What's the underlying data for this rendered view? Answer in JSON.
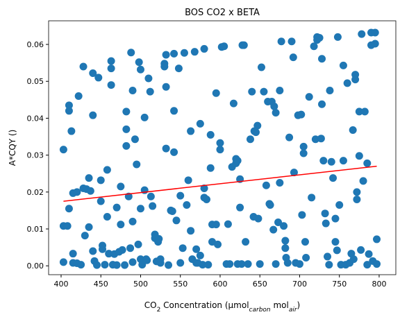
{
  "chart_data": {
    "type": "scatter",
    "title": "BOS CO2 x BETA",
    "xlabel_parts": [
      "CO",
      "2",
      " Concentration (μmol",
      "carbon",
      " mol",
      "air",
      ")"
    ],
    "ylabel": "A*CQY ()",
    "color": "#1f77b4",
    "xlim": [
      384.3,
      821
    ],
    "ylim": [
      -0.0024,
      0.0664
    ],
    "xticks": [
      400,
      450,
      500,
      550,
      600,
      650,
      700,
      750,
      800
    ],
    "yticks": [
      {
        "value": 0,
        "label": "0.00"
      },
      0.01,
      0.02,
      0.03,
      0.04,
      0.05,
      0.06
    ],
    "x": [
      403,
      403,
      403,
      408,
      410,
      410,
      410,
      413,
      415,
      415,
      415,
      420,
      420,
      422,
      425,
      428,
      428,
      430,
      432,
      435,
      435,
      437,
      440,
      440,
      440,
      442,
      445,
      447,
      450,
      450,
      452,
      452,
      455,
      458,
      458,
      460,
      463,
      463,
      463,
      465,
      467,
      470,
      470,
      473,
      475,
      475,
      477,
      480,
      482,
      482,
      482,
      485,
      487,
      488,
      490,
      490,
      490,
      493,
      495,
      497,
      498,
      500,
      500,
      500,
      502,
      505,
      505,
      507,
      508,
      510,
      512,
      513,
      515,
      518,
      518,
      520,
      522,
      523,
      525,
      525,
      530,
      530,
      532,
      532,
      532,
      535,
      538,
      540,
      542,
      542,
      542,
      545,
      548,
      550,
      550,
      553,
      555,
      558,
      560,
      563,
      563,
      565,
      568,
      570,
      570,
      572,
      575,
      575,
      578,
      580,
      580,
      580,
      583,
      585,
      588,
      588,
      590,
      590,
      595,
      595,
      597,
      600,
      600,
      602,
      605,
      608,
      610,
      612,
      615,
      617,
      620,
      620,
      622,
      622,
      625,
      625,
      627,
      628,
      630,
      632,
      635,
      638,
      640,
      642,
      643,
      645,
      647,
      648,
      650,
      652,
      655,
      658,
      660,
      662,
      663,
      665,
      667,
      668,
      670,
      670,
      673,
      675,
      675,
      677,
      680,
      682,
      682,
      683,
      685,
      687,
      690,
      692,
      693,
      695,
      698,
      700,
      702,
      703,
      705,
      705,
      707,
      708,
      712,
      715,
      718,
      720,
      722,
      722,
      725,
      727,
      728,
      728,
      730,
      732,
      733,
      735,
      737,
      738,
      740,
      742,
      745,
      745,
      747,
      748,
      750,
      752,
      755,
      755,
      758,
      760,
      763,
      765,
      767,
      768,
      770,
      770,
      772,
      772,
      775,
      775,
      777,
      778,
      780,
      782,
      785,
      785,
      787,
      790,
      790,
      792,
      795,
      795,
      797,
      797
    ],
    "values": [
      0.0315,
      0.0108,
      0.001,
      0.0108,
      0.0435,
      0.042,
      0.0155,
      0.0365,
      0.0197,
      0.0033,
      0.0008,
      0.02,
      0.0007,
      0.046,
      0.0003,
      0.054,
      0.021,
      0.0082,
      0.0208,
      0.0105,
      0.0238,
      0.0203,
      0.0522,
      0.0408,
      0.004,
      0.0013,
      0.0002,
      0.051,
      0.0232,
      0.0175,
      0.0055,
      0.0045,
      0.0003,
      0.026,
      0.0133,
      0.0033,
      0.0555,
      0.0535,
      0.049,
      0.0003,
      0.0032,
      0.0158,
      0.0002,
      0.0038,
      0.0215,
      0.0112,
      0.0043,
      0.0002,
      0.0418,
      0.037,
      0.0325,
      0.0188,
      0.0048,
      0.0578,
      0.0475,
      0.012,
      0.001,
      0.0343,
      0.0275,
      0.0058,
      0.0552,
      0.0532,
      0.0155,
      0.0018,
      0.0003,
      0.0402,
      0.0205,
      0.0018,
      0.0015,
      0.0508,
      0.0472,
      0.0188,
      0.0162,
      0.0085,
      0.0075,
      0.0012,
      0.0065,
      0.0073,
      0.0008,
      0.0018,
      0.0548,
      0.054,
      0.0572,
      0.0485,
      0.0318,
      0.0002,
      0.015,
      0.0148,
      0.0575,
      0.042,
      0.0308,
      0.0123,
      0.0535,
      0.019,
      0.0008,
      0.0048,
      0.0577,
      0.0165,
      0.0232,
      0.0365,
      0.0095,
      0.0018,
      0.058,
      0.0045,
      0.0008,
      0.0008,
      0.0385,
      0.0028,
      0.0003,
      0.0588,
      0.021,
      0.0185,
      0.018,
      0.0003,
      0.0355,
      0.0265,
      0.0112,
      0.0065,
      0.0468,
      0.0112,
      0.0058,
      0.0333,
      0.0315,
      0.0593,
      0.0595,
      0.0005,
      0.0113,
      0.0005,
      0.0268,
      0.044,
      0.029,
      0.0278,
      0.0285,
      0.0005,
      0.0235,
      0.0158,
      0.0005,
      0.0598,
      0.0598,
      0.0065,
      0.0005,
      0.0343,
      0.0472,
      0.0133,
      0.0365,
      0.0362,
      0.038,
      0.0128,
      0.0005,
      0.0538,
      0.0472,
      0.0218,
      0.0445,
      0.0168,
      0.0165,
      0.0445,
      0.0098,
      0.0432,
      0.0415,
      0.0005,
      0.0118,
      0.0475,
      0.0225,
      0.0608,
      0.0108,
      0.0068,
      0.0048,
      0.0022,
      0.0008,
      0.0348,
      0.0608,
      0.0565,
      0.0253,
      0.0008,
      0.0408,
      0.0005,
      0.041,
      0.0138,
      0.0323,
      0.0305,
      0.0065,
      0.0022,
      0.0458,
      0.0185,
      0.0595,
      0.0343,
      0.0612,
      0.062,
      0.0618,
      0.0345,
      0.0561,
      0.0438,
      0.0285,
      0.0142,
      0.0115,
      0.0025,
      0.0003,
      0.0475,
      0.0282,
      0.0238,
      0.0128,
      0.0065,
      0.0042,
      0.062,
      0.0165,
      0.0003,
      0.0285,
      0.0543,
      0.0003,
      0.0495,
      0.0008,
      0.0033,
      0.0368,
      0.0018,
      0.0518,
      0.0505,
      0.02,
      0.018,
      0.0418,
      0.0298,
      0.0043,
      0.0628,
      0.023,
      0.0418,
      0.0278,
      0.0003,
      0.0032,
      0.0632,
      0.0598,
      0.0013,
      0.0632,
      0.0602,
      0.0072,
      0.0005
    ],
    "trend": {
      "color": "#ff0000",
      "x": [
        403,
        797
      ],
      "values": [
        0.0175,
        0.027
      ]
    }
  }
}
